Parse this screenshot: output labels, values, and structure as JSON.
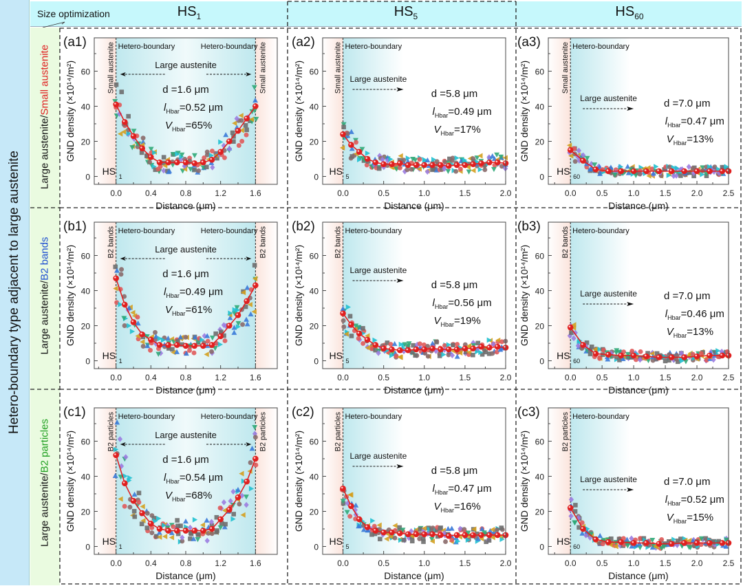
{
  "figure": {
    "left_title": "Hetero-boundary type adjacent to large austenite",
    "corner_label": "Size optimization",
    "columns": [
      {
        "base": "HS",
        "sub": "1"
      },
      {
        "base": "HS",
        "sub": "5"
      },
      {
        "base": "HS",
        "sub": "60"
      }
    ],
    "rows": [
      {
        "prefix": "Large austenite/",
        "highlight": "Small austenite",
        "highlight_color": "#e02020"
      },
      {
        "prefix": "Large austenite/",
        "highlight": "B2 bands",
        "highlight_color": "#2050d0"
      },
      {
        "prefix": "Large austenite/",
        "highlight": "B2 particles",
        "highlight_color": "#20a020"
      }
    ],
    "colors": {
      "header_bg": "#c6f8fc",
      "left_bg": "#c6e8f8",
      "row_label_bg": "#eafbe0",
      "fit_line": "#e02020",
      "scatter": [
        "#6e6e6e",
        "#e05a5a",
        "#3a7ad8",
        "#30a878",
        "#9b7ce0",
        "#d4a020",
        "#20c0d0",
        "#8a6a6a"
      ]
    }
  },
  "chart_data": [
    {
      "id": "a1",
      "type": "scatter",
      "panel_label": "(a1)",
      "xlabel": "Distance (μm)",
      "ylabel": "GND density (×10¹⁴/m²)",
      "xlim": [
        -0.25,
        1.85
      ],
      "ylim": [
        -4.5,
        79
      ],
      "xticks": [
        0.0,
        0.4,
        0.8,
        1.2,
        1.6
      ],
      "xtick_labels": [
        "0.0",
        "0.4",
        "0.8",
        "1.2",
        "1.6"
      ],
      "yticks": [
        0,
        20,
        40,
        60
      ],
      "ytick_labels": [
        "0",
        "20",
        "40",
        "60"
      ],
      "boundaries": [
        0.0,
        1.6
      ],
      "side_label": "Small austenite",
      "boundary_label": "Hetero-boundary",
      "region_label": "Large austenite",
      "arrow": "both",
      "hs_label": {
        "base": "HS",
        "sub": "1"
      },
      "annotation": {
        "d": "d =1.6 μm",
        "l": "=0.52 μm",
        "v": "=65%"
      },
      "fit": {
        "x": [
          0,
          0.1,
          0.2,
          0.3,
          0.4,
          0.5,
          0.6,
          0.7,
          0.8,
          0.9,
          1.0,
          1.1,
          1.2,
          1.3,
          1.4,
          1.5,
          1.6
        ],
        "y": [
          41,
          31,
          23,
          16,
          11,
          8,
          8,
          8,
          8,
          7.5,
          8,
          9.5,
          14,
          20,
          26,
          33,
          40
        ]
      },
      "scatter_spread": 9
    },
    {
      "id": "a2",
      "type": "scatter",
      "panel_label": "(a2)",
      "xlabel": "Distance (μm)",
      "ylabel": "GND density (×10¹⁴/m²)",
      "xlim": [
        -0.25,
        2.0
      ],
      "ylim": [
        -4.5,
        79
      ],
      "xticks": [
        0.0,
        0.5,
        1.0,
        1.5,
        2.0
      ],
      "xtick_labels": [
        "0.0",
        "0.5",
        "1.0",
        "1.5",
        "2.0"
      ],
      "yticks": [
        0,
        20,
        40,
        60
      ],
      "ytick_labels": [
        "0",
        "20",
        "40",
        "60"
      ],
      "boundaries": [
        0.0
      ],
      "side_label": "Small austenite",
      "boundary_label": "Hetero-boundary",
      "region_label": "Large austenite",
      "arrow": "right",
      "hs_label": {
        "base": "HS",
        "sub": "5"
      },
      "annotation": {
        "d": "d =5.8 μm",
        "l": "=0.49 μm",
        "v": "=17%"
      },
      "fit": {
        "x": [
          0,
          0.1,
          0.2,
          0.3,
          0.4,
          0.5,
          0.6,
          0.7,
          0.8,
          0.9,
          1.0,
          1.1,
          1.2,
          1.3,
          1.4,
          1.5,
          1.6,
          1.7,
          1.8,
          1.9,
          2.0
        ],
        "y": [
          24,
          18,
          14,
          10,
          8,
          7,
          7,
          7.5,
          6.5,
          6.5,
          6.5,
          6.5,
          6.5,
          6,
          6.5,
          6.5,
          7,
          7.5,
          8,
          8,
          7.5
        ]
      },
      "scatter_spread": 7
    },
    {
      "id": "a3",
      "type": "scatter",
      "panel_label": "(a3)",
      "xlabel": "Distance (μm)",
      "ylabel": "GND density (×10¹⁴/m²)",
      "xlim": [
        -0.35,
        2.5
      ],
      "ylim": [
        -4.5,
        79
      ],
      "xticks": [
        0.0,
        0.5,
        1.0,
        1.5,
        2.0,
        2.5
      ],
      "xtick_labels": [
        "0.0",
        "0.5",
        "1.0",
        "1.5",
        "2.0",
        "2.5"
      ],
      "yticks": [
        0,
        20,
        40,
        60
      ],
      "ytick_labels": [
        "0",
        "20",
        "40",
        "60"
      ],
      "boundaries": [
        0.0
      ],
      "side_label": "Small austenite",
      "boundary_label": "Hetero-boundary",
      "region_label": "Large austenite",
      "arrow": "right",
      "hs_label": {
        "base": "HS",
        "sub": "60"
      },
      "annotation": {
        "d": "d =7.0 μm",
        "l": "=0.47 μm",
        "v": "=13%"
      },
      "fit": {
        "x": [
          0,
          0.2,
          0.4,
          0.6,
          0.8,
          1.0,
          1.2,
          1.4,
          1.6,
          1.8,
          2.0,
          2.2,
          2.4,
          2.5
        ],
        "y": [
          15,
          9,
          4,
          3,
          3,
          3,
          3,
          3,
          3,
          3,
          3,
          3,
          3,
          3
        ]
      },
      "scatter_spread": 5
    },
    {
      "id": "b1",
      "type": "scatter",
      "panel_label": "(b1)",
      "xlabel": "Distance (μm)",
      "ylabel": "GND density (×10¹⁴/m²)",
      "xlim": [
        -0.25,
        1.85
      ],
      "ylim": [
        -4.5,
        79
      ],
      "xticks": [
        0.0,
        0.4,
        0.8,
        1.2,
        1.6
      ],
      "xtick_labels": [
        "0.0",
        "0.4",
        "0.8",
        "1.2",
        "1.6"
      ],
      "yticks": [
        0,
        20,
        40,
        60
      ],
      "ytick_labels": [
        "0",
        "20",
        "40",
        "60"
      ],
      "boundaries": [
        0.0,
        1.6
      ],
      "side_label": "B2 bands",
      "boundary_label": "Hetero-boundary",
      "region_label": "Large austenite",
      "arrow": "both",
      "hs_label": {
        "base": "HS",
        "sub": "1"
      },
      "annotation": {
        "d": "d =1.6 μm",
        "l": "=0.49 μm",
        "v": "=61%"
      },
      "fit": {
        "x": [
          0,
          0.1,
          0.2,
          0.3,
          0.4,
          0.5,
          0.6,
          0.7,
          0.8,
          0.9,
          1.0,
          1.1,
          1.2,
          1.3,
          1.4,
          1.5,
          1.6
        ],
        "y": [
          47,
          32,
          22,
          15,
          12,
          9,
          9,
          9,
          8.5,
          8.5,
          8.5,
          9,
          14,
          20,
          26,
          34,
          43
        ]
      },
      "scatter_spread": 9
    },
    {
      "id": "b2",
      "type": "scatter",
      "panel_label": "(b2)",
      "xlabel": "Distance (μm)",
      "ylabel": "GND density (×10¹⁴/m²)",
      "xlim": [
        -0.25,
        2.0
      ],
      "ylim": [
        -4.5,
        79
      ],
      "xticks": [
        0.0,
        0.5,
        1.0,
        1.5,
        2.0
      ],
      "xtick_labels": [
        "0.0",
        "0.5",
        "1.0",
        "1.5",
        "2.0"
      ],
      "yticks": [
        0,
        20,
        40,
        60
      ],
      "ytick_labels": [
        "0",
        "20",
        "40",
        "60"
      ],
      "boundaries": [
        0.0
      ],
      "side_label": "B2 bands",
      "boundary_label": "Hetero-boundary",
      "region_label": "Large austenite",
      "arrow": "right",
      "hs_label": {
        "base": "HS",
        "sub": "5"
      },
      "annotation": {
        "d": "d =5.8 μm",
        "l": "=0.56 μm",
        "v": "=19%"
      },
      "fit": {
        "x": [
          0,
          0.1,
          0.2,
          0.3,
          0.4,
          0.5,
          0.6,
          0.7,
          0.8,
          0.9,
          1.0,
          1.1,
          1.2,
          1.3,
          1.4,
          1.5,
          1.6,
          1.7,
          1.8,
          1.9,
          2.0
        ],
        "y": [
          27,
          20.5,
          15.5,
          12,
          9,
          7,
          6.5,
          6,
          6,
          6.5,
          6.5,
          7,
          6.5,
          6.5,
          6.5,
          7,
          7,
          8,
          7.5,
          8,
          7.5
        ]
      },
      "scatter_spread": 7
    },
    {
      "id": "b3",
      "type": "scatter",
      "panel_label": "(b3)",
      "xlabel": "Distance (μm)",
      "ylabel": "GND density (×10¹⁴/m²)",
      "xlim": [
        -0.35,
        2.5
      ],
      "ylim": [
        -4.5,
        79
      ],
      "xticks": [
        0.0,
        0.5,
        1.0,
        1.5,
        2.0,
        2.5
      ],
      "xtick_labels": [
        "0.0",
        "0.5",
        "1.0",
        "1.5",
        "2.0",
        "2.5"
      ],
      "yticks": [
        0,
        20,
        40,
        60
      ],
      "ytick_labels": [
        "0",
        "20",
        "40",
        "60"
      ],
      "boundaries": [
        0.0
      ],
      "side_label": "B2 bands",
      "boundary_label": "Hetero-boundary",
      "region_label": "Large austenite",
      "arrow": "right",
      "hs_label": {
        "base": "HS",
        "sub": "60"
      },
      "annotation": {
        "d": "d =7.0 μm",
        "l": "=0.46 μm",
        "v": "=13%"
      },
      "fit": {
        "x": [
          0,
          0.2,
          0.4,
          0.6,
          0.8,
          1.0,
          1.2,
          1.4,
          1.6,
          1.8,
          2.0,
          2.2,
          2.4,
          2.5
        ],
        "y": [
          19,
          9,
          4,
          3.5,
          3,
          3,
          2.5,
          2,
          2,
          2,
          2.5,
          3,
          3,
          3
        ]
      },
      "scatter_spread": 5
    },
    {
      "id": "c1",
      "type": "scatter",
      "panel_label": "(c1)",
      "xlabel": "Distance (μm)",
      "ylabel": "GND density (×10¹⁴/m²)",
      "xlim": [
        -0.25,
        1.85
      ],
      "ylim": [
        -4.5,
        79
      ],
      "xticks": [
        0.0,
        0.4,
        0.8,
        1.2,
        1.6
      ],
      "xtick_labels": [
        "0.0",
        "0.4",
        "0.8",
        "1.2",
        "1.6"
      ],
      "yticks": [
        0,
        20,
        40,
        60
      ],
      "ytick_labels": [
        "0",
        "20",
        "40",
        "60"
      ],
      "boundaries": [
        0.0,
        1.6
      ],
      "side_label": "B2 particles",
      "boundary_label": "Hetero-boundary",
      "region_label": "Large austenite",
      "arrow": "both",
      "hs_label": {
        "base": "HS",
        "sub": "1"
      },
      "annotation": {
        "d": "d =1.6 μm",
        "l": "=0.54 μm",
        "v": "=68%"
      },
      "fit": {
        "x": [
          0,
          0.1,
          0.2,
          0.3,
          0.4,
          0.5,
          0.6,
          0.7,
          0.8,
          0.9,
          1.0,
          1.1,
          1.2,
          1.3,
          1.4,
          1.5,
          1.6
        ],
        "y": [
          52,
          36,
          26,
          19,
          13,
          10,
          9,
          9,
          9,
          9,
          9,
          10,
          15.5,
          21,
          28,
          37,
          50
        ]
      },
      "scatter_spread": 10
    },
    {
      "id": "c2",
      "type": "scatter",
      "panel_label": "(c2)",
      "xlabel": "Distance (μm)",
      "ylabel": "GND density (×10¹⁴/m²)",
      "xlim": [
        -0.25,
        2.0
      ],
      "ylim": [
        -4.5,
        79
      ],
      "xticks": [
        0.0,
        0.5,
        1.0,
        1.5,
        2.0
      ],
      "xtick_labels": [
        "0.0",
        "0.5",
        "1.0",
        "1.5",
        "2.0"
      ],
      "yticks": [
        0,
        20,
        40,
        60
      ],
      "ytick_labels": [
        "0",
        "20",
        "40",
        "60"
      ],
      "boundaries": [
        0.0
      ],
      "side_label": "B2 particles",
      "boundary_label": "Hetero-boundary",
      "region_label": "Large austenite",
      "arrow": "right",
      "hs_label": {
        "base": "HS",
        "sub": "5"
      },
      "annotation": {
        "d": "d =5.8 μm",
        "l": "=0.47 μm",
        "v": "=16%"
      },
      "fit": {
        "x": [
          0,
          0.1,
          0.2,
          0.3,
          0.4,
          0.5,
          0.6,
          0.7,
          0.8,
          0.9,
          1.0,
          1.1,
          1.2,
          1.3,
          1.4,
          1.5,
          1.6,
          1.7,
          1.8,
          1.9,
          2.0
        ],
        "y": [
          33,
          23,
          15.5,
          11,
          9,
          8,
          8,
          7.5,
          7,
          7,
          7,
          7,
          6.5,
          6,
          6.5,
          6.5,
          6.5,
          6.5,
          6.5,
          6.5,
          6.5
        ]
      },
      "scatter_spread": 7
    },
    {
      "id": "c3",
      "type": "scatter",
      "panel_label": "(c3)",
      "xlabel": "Distance (μm)",
      "ylabel": "GND density (×10¹⁴/m²)",
      "xlim": [
        -0.35,
        2.5
      ],
      "ylim": [
        -4.5,
        79
      ],
      "xticks": [
        0.0,
        0.5,
        1.0,
        1.5,
        2.0,
        2.5
      ],
      "xtick_labels": [
        "0.0",
        "0.5",
        "1.0",
        "1.5",
        "2.0",
        "2.5"
      ],
      "yticks": [
        0,
        20,
        40,
        60
      ],
      "ytick_labels": [
        "0",
        "20",
        "40",
        "60"
      ],
      "boundaries": [
        0.0
      ],
      "side_label": "B2 particles",
      "boundary_label": "Hetero-boundary",
      "region_label": "Large austenite",
      "arrow": "right",
      "hs_label": {
        "base": "HS",
        "sub": "60"
      },
      "annotation": {
        "d": "d =7.0 μm",
        "l": "=0.52 μm",
        "v": "=15%"
      },
      "fit": {
        "x": [
          0,
          0.2,
          0.4,
          0.6,
          0.8,
          1.0,
          1.2,
          1.4,
          1.6,
          1.8,
          2.0,
          2.2,
          2.4,
          2.5
        ],
        "y": [
          22,
          10,
          4,
          2.5,
          2.5,
          2,
          2,
          1.5,
          1.5,
          2,
          2,
          2,
          2,
          2
        ]
      },
      "scatter_spread": 5
    }
  ]
}
